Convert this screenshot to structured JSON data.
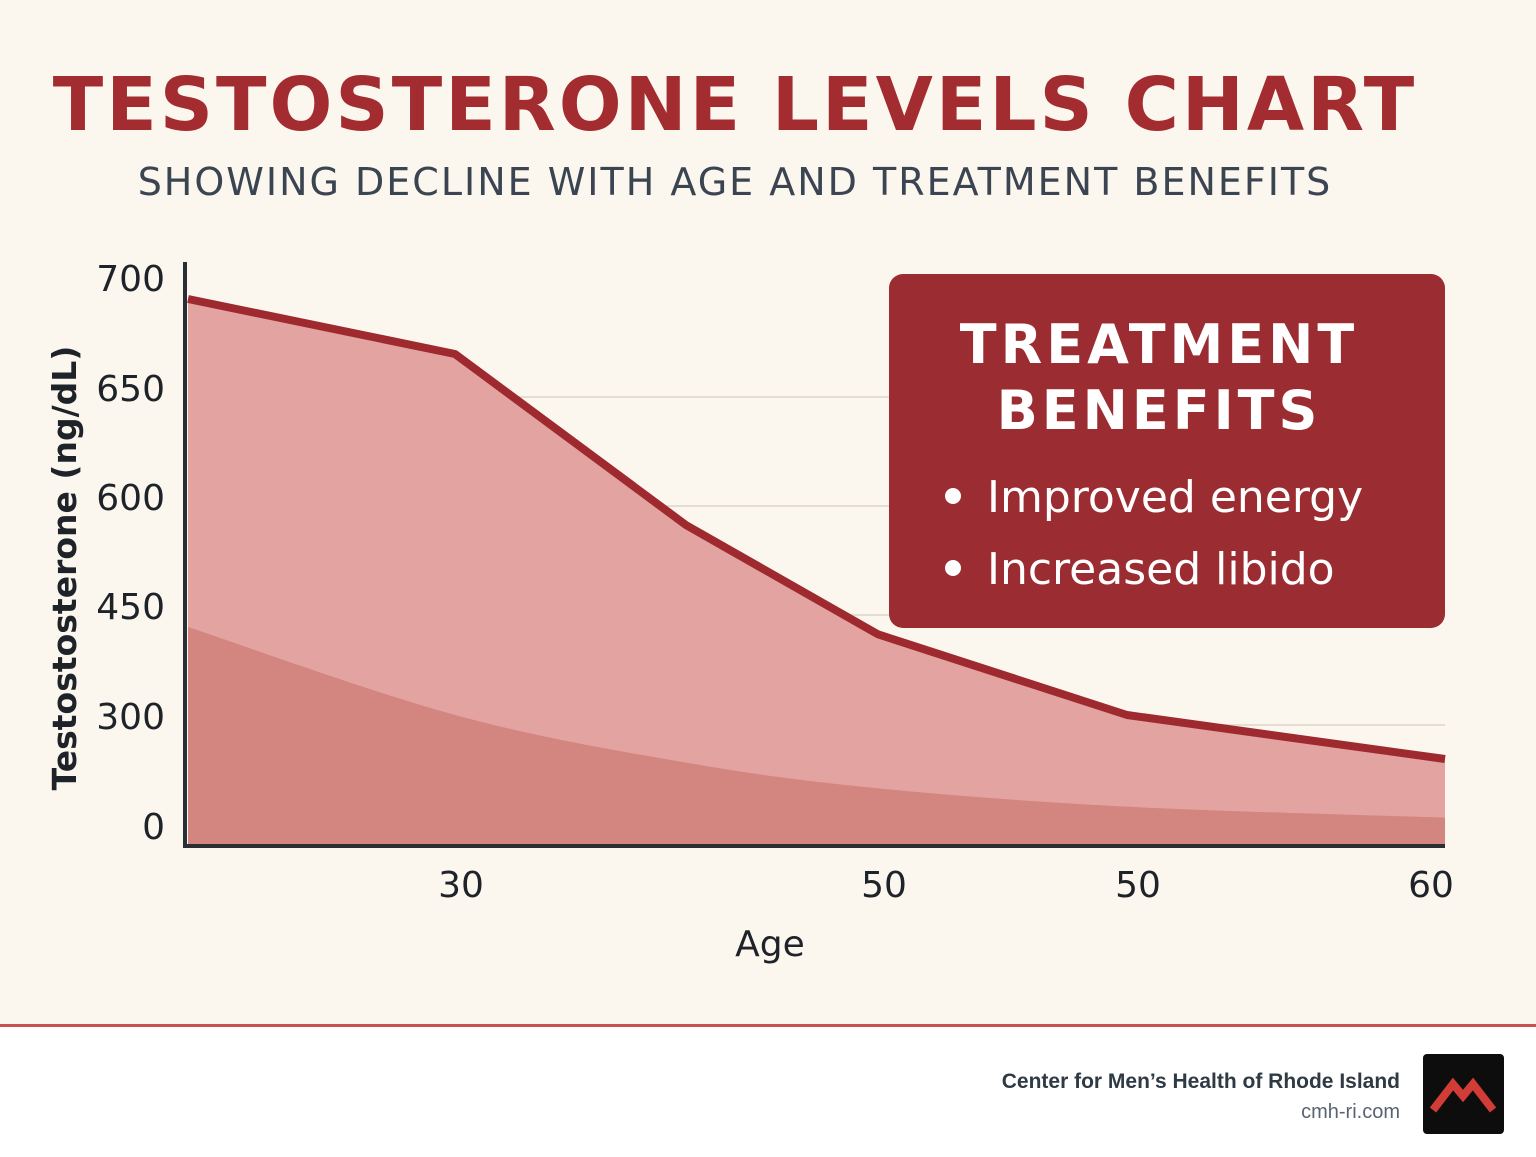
{
  "title": "TESTOSTERONE LEVELS CHART",
  "subtitle": "SHOWING DECLINE WITH AGE AND TREATMENT BENEFITS",
  "chart_data": {
    "type": "area",
    "xlabel": "Age",
    "ylabel": "Testostosterone (ng/dL)",
    "x_tick_labels": [
      "30",
      "50",
      "50",
      "60"
    ],
    "y_tick_labels": [
      "700",
      "650",
      "600",
      "450",
      "300",
      "0"
    ],
    "grid": true,
    "legend": "none",
    "series": [
      {
        "values": [
          690,
          665,
          560,
          410,
          300,
          180
        ]
      },
      {
        "values": [
          420,
          300,
          170,
          100,
          50,
          20
        ]
      }
    ],
    "colors": {
      "line": "#9e2a2f",
      "upper_fill": "#e3a3a0",
      "lower_fill": "#d3857f",
      "axis": "#2a2f36",
      "grid": "#e6ddd2"
    }
  },
  "treatment_box": {
    "title": "TREATMENT\nBENEFITS",
    "items": [
      "Improved energy",
      "Increased libido"
    ]
  },
  "footer": {
    "org_name": "Center for Men’s Health of Rhode Island",
    "url": "cmh-ri.com",
    "logo_icon": "mountain-logo-icon"
  }
}
